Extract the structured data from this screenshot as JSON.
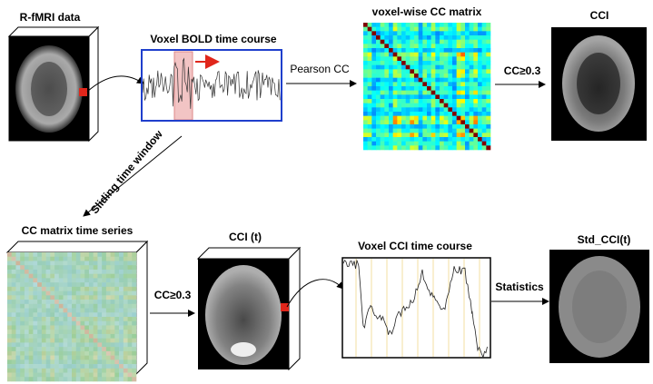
{
  "nodes": [
    {
      "label": "R-fMRI data"
    },
    {
      "label": "Voxel BOLD time course"
    },
    {
      "label": "voxel-wise CC matrix"
    },
    {
      "label": "CCI"
    },
    {
      "label": "CC matrix time series"
    },
    {
      "label": "CCI (t)"
    },
    {
      "label": "Voxel CCI time course"
    },
    {
      "label": "Std_CCI(t)"
    }
  ],
  "edges": [
    {
      "label": "Pearson CC"
    },
    {
      "label": "CC≥0.3"
    },
    {
      "label": "Sliding time window"
    },
    {
      "label": "CC≥0.3"
    },
    {
      "label": "Statistics"
    }
  ]
}
